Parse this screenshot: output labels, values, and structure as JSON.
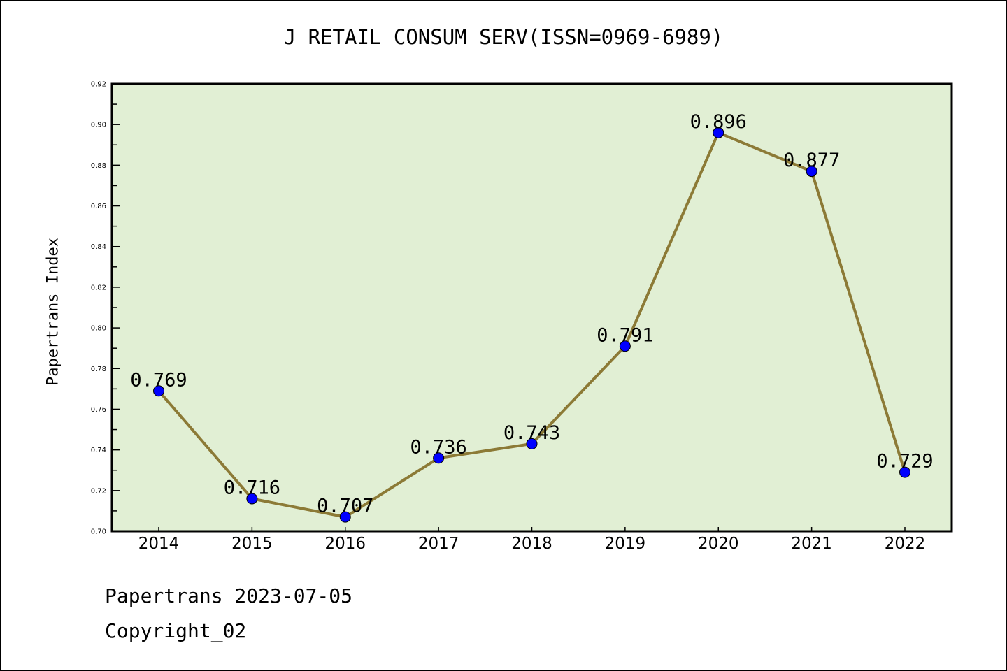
{
  "chart_data": {
    "type": "line",
    "title": "J RETAIL CONSUM SERV(ISSN=0969-6989)",
    "xlabel": "",
    "ylabel": "Papertrans Index",
    "categories": [
      "2014",
      "2015",
      "2016",
      "2017",
      "2018",
      "2019",
      "2020",
      "2021",
      "2022"
    ],
    "values": [
      0.769,
      0.716,
      0.707,
      0.736,
      0.743,
      0.791,
      0.896,
      0.877,
      0.729
    ],
    "data_labels": [
      "0.769",
      "0.716",
      "0.707",
      "0.736",
      "0.743",
      "0.791",
      "0.896",
      "0.877",
      "0.729"
    ],
    "ylim": [
      0.7,
      0.92
    ],
    "yticks": [
      "0.70",
      "0.72",
      "0.74",
      "0.76",
      "0.78",
      "0.80",
      "0.82",
      "0.84",
      "0.86",
      "0.88",
      "0.90",
      "0.92"
    ],
    "grid": false,
    "colors": {
      "line": "#8c7a36",
      "marker": "#0000ff",
      "plot_bg": "#e1efd4"
    }
  },
  "footer": {
    "line1": "Papertrans 2023-07-05",
    "line2": "Copyright_02"
  }
}
